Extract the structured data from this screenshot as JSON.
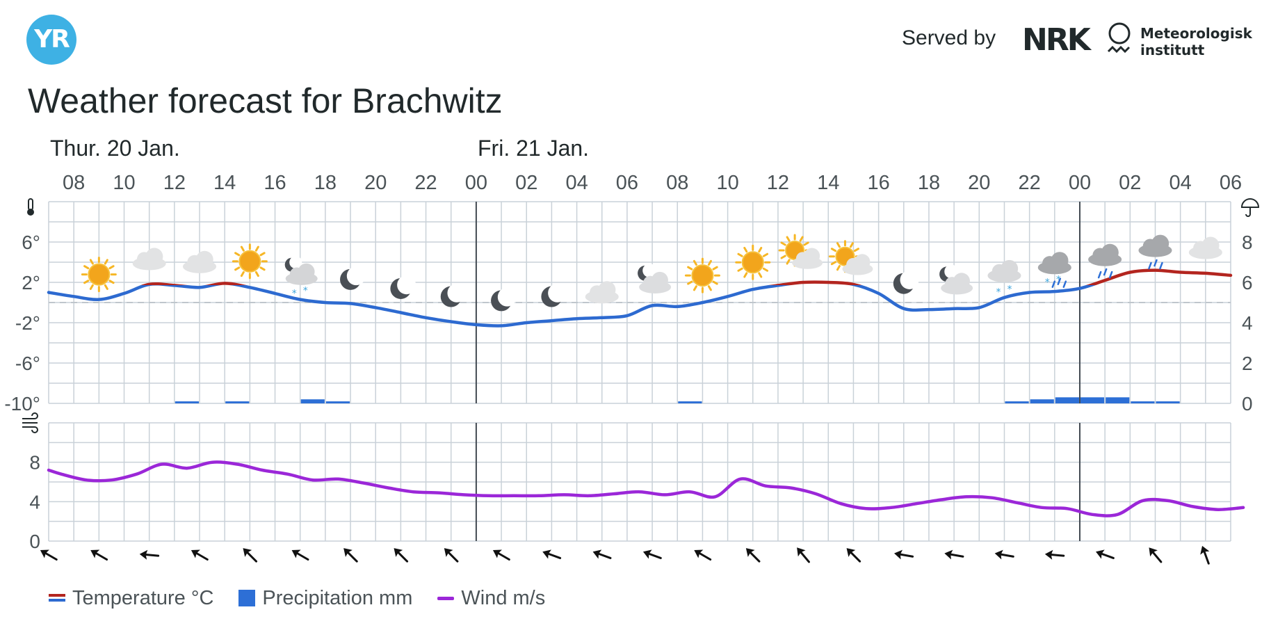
{
  "header": {
    "logo_text": "YR",
    "served_by": "Served by",
    "nrk_logo_text": "NRK",
    "met_lines": [
      "Meteorologisk",
      "institutt"
    ]
  },
  "title": "Weather forecast for Brachwitz",
  "colors": {
    "temp_warm": "#b3251f",
    "temp_cold": "#2d6ad0",
    "precip": "#2d6fd6",
    "wind": "#9b27d8",
    "grid": "#c9d1d8",
    "day_line": "#434a52",
    "zero_line": "#bfc6cc",
    "logo_bg": "#3eb1e4"
  },
  "chart_data": [
    {
      "type": "line",
      "title": "",
      "days": [
        {
          "label": "Thur. 20 Jan.",
          "start_index": 0
        },
        {
          "label": "Fri. 21 Jan.",
          "start_index": 8
        }
      ],
      "time_labels": [
        "08",
        "10",
        "12",
        "14",
        "16",
        "18",
        "20",
        "22",
        "00",
        "02",
        "04",
        "06",
        "08",
        "10",
        "12",
        "14",
        "16",
        "18",
        "20",
        "22",
        "00",
        "02",
        "04",
        "06"
      ],
      "day_boundaries": [
        "00"
      ],
      "x": [
        7,
        8,
        9,
        10,
        11,
        12,
        13,
        14,
        15,
        16,
        17,
        18,
        19,
        20,
        21,
        22,
        23,
        24,
        25,
        26,
        27,
        28,
        29,
        30,
        31,
        32,
        33,
        34,
        35,
        36,
        37,
        38,
        39,
        40,
        41,
        42,
        43,
        44,
        45,
        46,
        47,
        48,
        49,
        50,
        51,
        52,
        53,
        54
      ],
      "temperature": {
        "name": "Temperature °C",
        "unit": "°C",
        "ylim": [
          -10,
          10
        ],
        "yticks": [
          "6°",
          "2°",
          "-2°",
          "-6°",
          "-10°"
        ],
        "ytick_values": [
          6,
          2,
          -2,
          -6,
          -10
        ],
        "values": [
          1.0,
          0.6,
          0.3,
          0.9,
          1.8,
          1.7,
          1.5,
          1.9,
          1.5,
          0.9,
          0.3,
          0.0,
          -0.1,
          -0.5,
          -1.0,
          -1.5,
          -1.9,
          -2.2,
          -2.3,
          -2.0,
          -1.8,
          -1.6,
          -1.5,
          -1.3,
          -0.3,
          -0.4,
          0.0,
          0.6,
          1.3,
          1.7,
          2.0,
          2.0,
          1.8,
          0.9,
          -0.6,
          -0.7,
          -0.6,
          -0.5,
          0.5,
          1.0,
          1.1,
          1.4,
          2.2,
          3.0,
          3.2,
          3.0,
          2.9,
          2.7
        ]
      },
      "precipitation": {
        "name": "Precipitation mm",
        "unit": "mm",
        "ylim": [
          0,
          10
        ],
        "yticks": [
          "8",
          "6",
          "4",
          "2",
          "0"
        ],
        "ytick_values": [
          8,
          6,
          4,
          2,
          0
        ],
        "bars": [
          {
            "hour_index": 5,
            "value": 0.1
          },
          {
            "hour_index": 7,
            "value": 0.1
          },
          {
            "hour_index": 10,
            "value": 0.2
          },
          {
            "hour_index": 11,
            "value": 0.1
          },
          {
            "hour_index": 25,
            "value": 0.1
          },
          {
            "hour_index": 38,
            "value": 0.1
          },
          {
            "hour_index": 39,
            "value": 0.2
          },
          {
            "hour_index": 40,
            "value": 0.3
          },
          {
            "hour_index": 41,
            "value": 0.3
          },
          {
            "hour_index": 42,
            "value": 0.3
          },
          {
            "hour_index": 43,
            "value": 0.1
          },
          {
            "hour_index": 44,
            "value": 0.1
          }
        ]
      },
      "symbols": [
        "sun",
        "cloudy",
        "cloudy",
        "sun",
        "moon-cloud-snow",
        "moon",
        "moon",
        "moon",
        "moon",
        "moon",
        "cloudy",
        "moon-cloud",
        "sun",
        "sun",
        "sun-cloud",
        "sun-cloud",
        "moon",
        "moon-cloud",
        "cloud-snow",
        "cloud-sleet",
        "cloud-rain",
        "cloud-rain",
        "cloudy"
      ],
      "symbol_temps": [
        0.3,
        1.8,
        1.5,
        1.6,
        0.3,
        -0.2,
        -1.1,
        -1.9,
        -2.3,
        -1.9,
        -1.5,
        -0.4,
        0.2,
        1.5,
        2.0,
        1.4,
        -0.6,
        -0.5,
        0.6,
        1.4,
        2.2,
        3.1,
        2.9
      ]
    },
    {
      "type": "line",
      "title": "",
      "wind": {
        "name": "Wind m/s",
        "unit": "m/s",
        "ylim": [
          0,
          12
        ],
        "yticks": [
          "8",
          "4",
          "0"
        ],
        "ytick_values": [
          8,
          4,
          0
        ],
        "values": [
          7.2,
          6.8,
          6.2,
          6.2,
          6.8,
          7.8,
          7.4,
          8.0,
          7.8,
          7.2,
          6.8,
          6.2,
          6.3,
          5.9,
          5.4,
          5.0,
          4.9,
          4.7,
          4.6,
          4.6,
          4.6,
          4.7,
          4.6,
          4.8,
          5.0,
          4.7,
          5.0,
          4.5,
          6.3,
          5.6,
          5.4,
          4.8,
          3.8,
          3.3,
          3.4,
          3.8,
          4.2,
          4.5,
          4.4,
          3.9,
          3.4,
          3.3,
          2.7,
          2.7,
          4.1,
          4.1,
          3.5,
          3.2,
          3.4
        ],
        "x": [
          6,
          7,
          8,
          9,
          10,
          11,
          12,
          13,
          14,
          15,
          16,
          17,
          18,
          19,
          20,
          21,
          22,
          23,
          24,
          25,
          26,
          27,
          28,
          29,
          30,
          31,
          32,
          33,
          34,
          35,
          36,
          37,
          38,
          39,
          40,
          41,
          42,
          43,
          44,
          45,
          46,
          47,
          48,
          49,
          50,
          51,
          52,
          53,
          54
        ]
      },
      "wind_directions_deg": [
        300,
        300,
        275,
        300,
        315,
        300,
        315,
        315,
        315,
        300,
        290,
        290,
        290,
        300,
        315,
        320,
        315,
        280,
        280,
        280,
        275,
        290,
        320,
        340
      ]
    }
  ],
  "legend": {
    "temperature": "Temperature °C",
    "precipitation": "Precipitation mm",
    "wind": "Wind m/s"
  }
}
